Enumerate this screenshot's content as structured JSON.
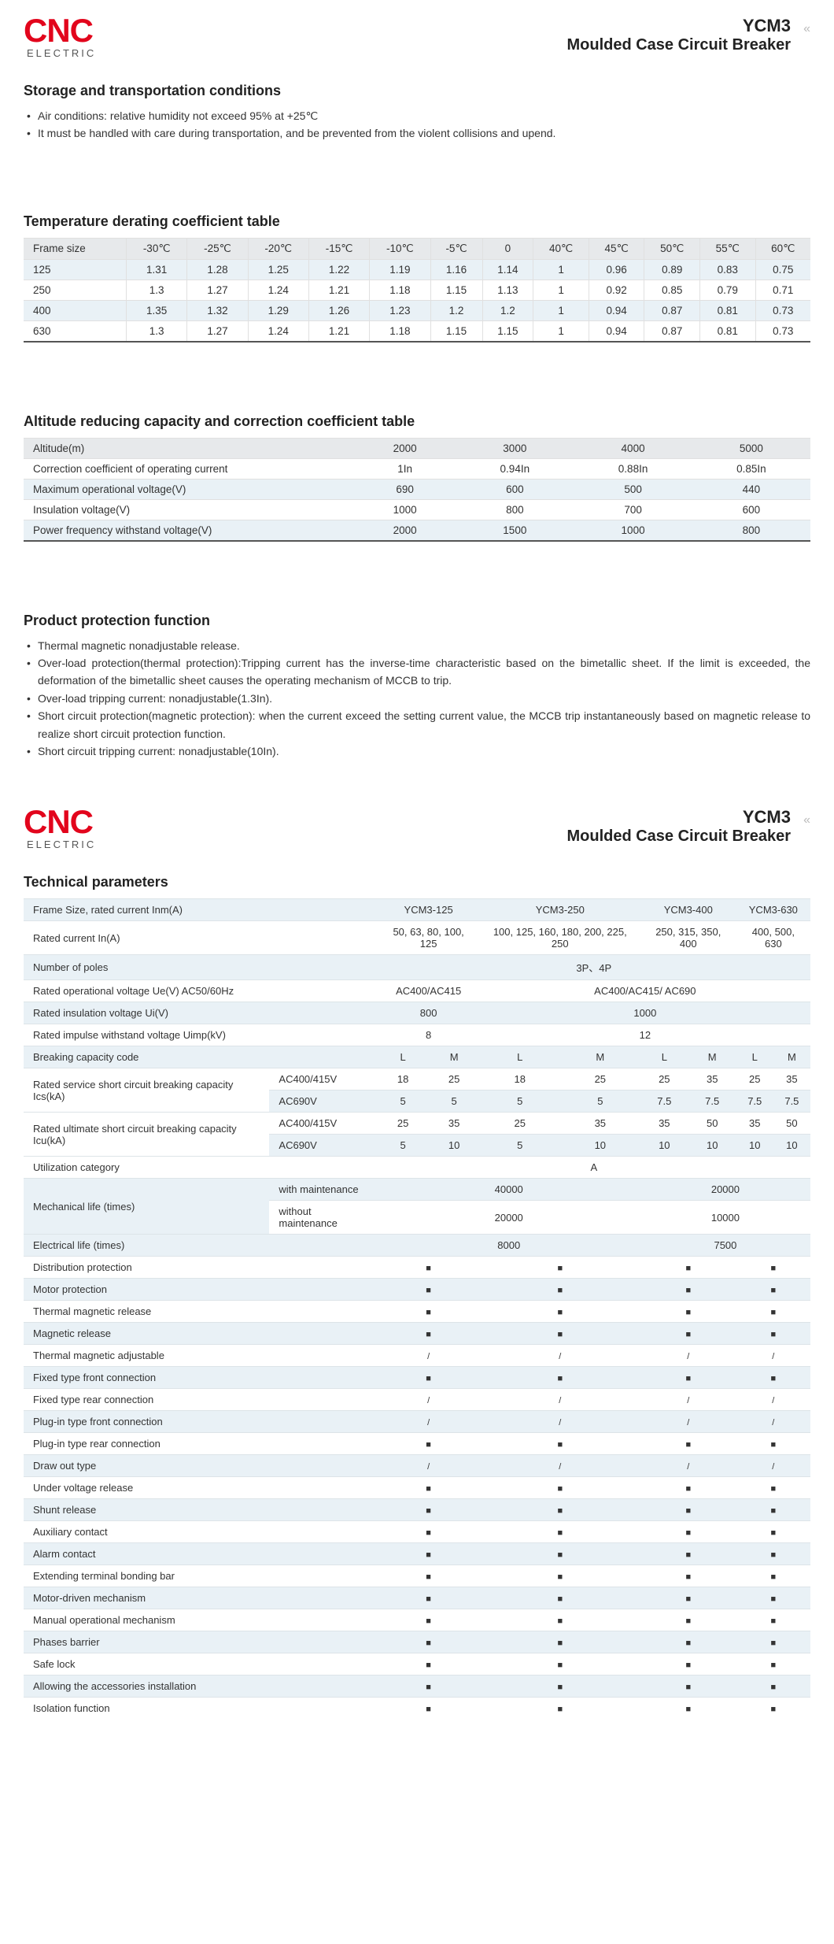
{
  "logo": {
    "main": "CNC",
    "sub": "ELECTRIC"
  },
  "header": {
    "model": "YCM3",
    "desc": "Moulded Case Circuit Breaker"
  },
  "storage": {
    "title": "Storage and transportation conditions",
    "items": [
      "Air conditions: relative humidity not exceed 95% at +25℃",
      "It must be handled with care during transportation, and be prevented from the violent collisions and upend."
    ]
  },
  "derating": {
    "title": "Temperature derating coefficient table",
    "headers": [
      "Frame size",
      "-30℃",
      "-25℃",
      "-20℃",
      "-15℃",
      "-10℃",
      "-5℃",
      "0",
      "40℃",
      "45℃",
      "50℃",
      "55℃",
      "60℃"
    ],
    "rows": [
      [
        "125",
        "1.31",
        "1.28",
        "1.25",
        "1.22",
        "1.19",
        "1.16",
        "1.14",
        "1",
        "0.96",
        "0.89",
        "0.83",
        "0.75"
      ],
      [
        "250",
        "1.3",
        "1.27",
        "1.24",
        "1.21",
        "1.18",
        "1.15",
        "1.13",
        "1",
        "0.92",
        "0.85",
        "0.79",
        "0.71"
      ],
      [
        "400",
        "1.35",
        "1.32",
        "1.29",
        "1.26",
        "1.23",
        "1.2",
        "1.2",
        "1",
        "0.94",
        "0.87",
        "0.81",
        "0.73"
      ],
      [
        "630",
        "1.3",
        "1.27",
        "1.24",
        "1.21",
        "1.18",
        "1.15",
        "1.15",
        "1",
        "0.94",
        "0.87",
        "0.81",
        "0.73"
      ]
    ]
  },
  "altitude": {
    "title": "Altitude reducing capacity and correction coefficient table",
    "headers": [
      "Altitude(m)",
      "2000",
      "3000",
      "4000",
      "5000"
    ],
    "rows": [
      [
        "Correction coefficient of operating current",
        "1In",
        "0.94In",
        "0.88In",
        "0.85In"
      ],
      [
        "Maximum operational voltage(V)",
        "690",
        "600",
        "500",
        "440"
      ],
      [
        "Insulation voltage(V)",
        "1000",
        "800",
        "700",
        "600"
      ],
      [
        "Power frequency withstand voltage(V)",
        "2000",
        "1500",
        "1000",
        "800"
      ]
    ]
  },
  "protection": {
    "title": "Product protection function",
    "items": [
      "Thermal magnetic nonadjustable release.",
      "Over-load protection(thermal protection):Tripping current has the inverse-time characteristic based on the bimetallic sheet. If the limit is exceeded, the deformation of the bimetallic sheet causes the operating mechanism of MCCB to trip.",
      "Over-load tripping current: nonadjustable(1.3In).",
      "Short circuit protection(magnetic protection): when the current exceed the setting current value, the MCCB trip instantaneously based on magnetic release to realize short circuit protection function.",
      "Short circuit tripping current: nonadjustable(10In)."
    ]
  },
  "tech": {
    "title": "Technical parameters",
    "models": [
      "YCM3-125",
      "YCM3-250",
      "YCM3-400",
      "YCM3-630"
    ],
    "frame_label": "Frame Size, rated current Inm(A)",
    "rated_current": {
      "label": "Rated current In(A)",
      "vals": [
        "50, 63, 80, 100, 125",
        "100, 125, 160, 180, 200, 225, 250",
        "250, 315, 350, 400",
        "400, 500, 630"
      ]
    },
    "poles": {
      "label": "Number of poles",
      "val": "3P、4P"
    },
    "rated_voltage": {
      "label": "Rated operational voltage Ue(V) AC50/60Hz",
      "v1": "AC400/AC415",
      "v2": "AC400/AC415/ AC690"
    },
    "insul": {
      "label": "Rated insulation voltage Ui(V)",
      "v1": "800",
      "v2": "1000"
    },
    "impulse": {
      "label": "Rated impulse withstand voltage Uimp(kV)",
      "v1": "8",
      "v2": "12"
    },
    "cap_code": {
      "label": "Breaking capacity code",
      "lm": [
        "L",
        "M",
        "L",
        "M",
        "L",
        "M",
        "L",
        "M"
      ]
    },
    "ics": {
      "label": "Rated service short circuit breaking capacity Ics(kA)",
      "r1_label": "AC400/415V",
      "r1": [
        "18",
        "25",
        "18",
        "25",
        "25",
        "35",
        "25",
        "35"
      ],
      "r2_label": "AC690V",
      "r2": [
        "5",
        "5",
        "5",
        "5",
        "7.5",
        "7.5",
        "7.5",
        "7.5"
      ]
    },
    "icu": {
      "label": "Rated ultimate short circuit breaking capacity Icu(kA)",
      "r1_label": "AC400/415V",
      "r1": [
        "25",
        "35",
        "25",
        "35",
        "35",
        "50",
        "35",
        "50"
      ],
      "r2_label": "AC690V",
      "r2": [
        "5",
        "10",
        "5",
        "10",
        "10",
        "10",
        "10",
        "10"
      ]
    },
    "util": {
      "label": "Utilization category",
      "val": "A"
    },
    "mech": {
      "label": "Mechanical life (times)",
      "r1_label": "with maintenance",
      "r1": [
        "40000",
        "20000"
      ],
      "r2_label": "without maintenance",
      "r2": [
        "20000",
        "10000"
      ]
    },
    "elec": {
      "label": "Electrical life (times)",
      "vals": [
        "8000",
        "7500"
      ]
    },
    "feature_rows": [
      {
        "label": "Distribution protection",
        "mark": "■",
        "bg": "w"
      },
      {
        "label": "Motor protection",
        "mark": "■",
        "bg": "b"
      },
      {
        "label": "Thermal magnetic release",
        "mark": "■",
        "bg": "w"
      },
      {
        "label": "Magnetic release",
        "mark": "■",
        "bg": "b"
      },
      {
        "label": "Thermal magnetic adjustable",
        "mark": "/",
        "bg": "w"
      },
      {
        "label": "Fixed type front connection",
        "mark": "■",
        "bg": "b"
      },
      {
        "label": "Fixed type rear connection",
        "mark": "/",
        "bg": "w"
      },
      {
        "label": "Plug-in type front connection",
        "mark": "/",
        "bg": "b"
      },
      {
        "label": "Plug-in type rear connection",
        "mark": "■",
        "bg": "w"
      },
      {
        "label": "Draw out type",
        "mark": "/",
        "bg": "b"
      },
      {
        "label": "Under voltage release",
        "mark": "■",
        "bg": "w"
      },
      {
        "label": "Shunt release",
        "mark": "■",
        "bg": "b"
      },
      {
        "label": "Auxiliary contact",
        "mark": "■",
        "bg": "w"
      },
      {
        "label": "Alarm contact",
        "mark": "■",
        "bg": "b"
      },
      {
        "label": "Extending terminal bonding bar",
        "mark": "■",
        "bg": "w"
      },
      {
        "label": "Motor-driven mechanism",
        "mark": "■",
        "bg": "b"
      },
      {
        "label": "Manual operational mechanism",
        "mark": "■",
        "bg": "w"
      },
      {
        "label": "Phases barrier",
        "mark": "■",
        "bg": "b"
      },
      {
        "label": "Safe lock",
        "mark": "■",
        "bg": "w"
      },
      {
        "label": "Allowing the accessories installation",
        "mark": "■",
        "bg": "b"
      },
      {
        "label": "Isolation function",
        "mark": "■",
        "bg": "w"
      }
    ]
  }
}
